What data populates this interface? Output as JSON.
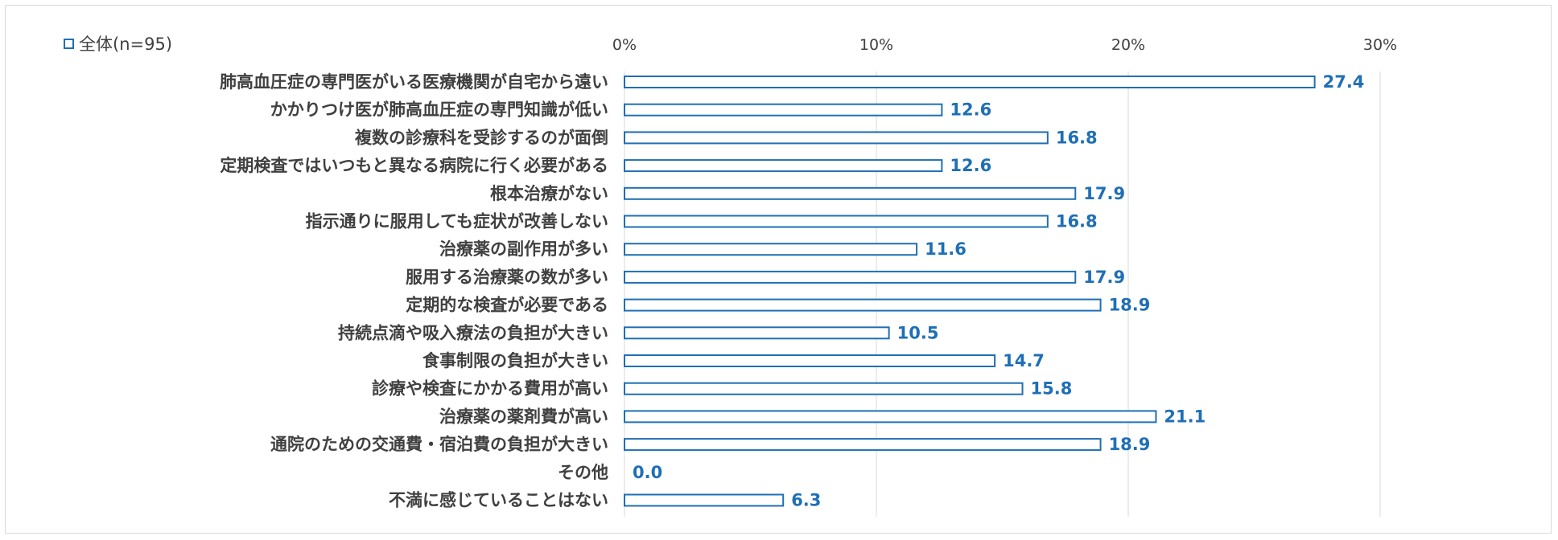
{
  "chart_data": {
    "type": "bar",
    "orientation": "horizontal",
    "legend": {
      "label": "全体(n=95)",
      "position": "top-left"
    },
    "categories": [
      "肺高血圧症の専門医がいる医療機関が自宅から遠い",
      "かかりつけ医が肺高血圧症の専門知識が低い",
      "複数の診療科を受診するのが面倒",
      "定期検査ではいつもと異なる病院に行く必要がある",
      "根本治療がない",
      "指示通りに服用しても症状が改善しない",
      "治療薬の副作用が多い",
      "服用する治療薬の数が多い",
      "定期的な検査が必要である",
      "持続点滴や吸入療法の負担が大きい",
      "食事制限の負担が大きい",
      "診療や検査にかかる費用が高い",
      "治療薬の薬剤費が高い",
      "通院のための交通費・宿泊費の負担が大きい",
      "その他",
      "不満に感じていることはない"
    ],
    "values": [
      27.4,
      12.6,
      16.8,
      12.6,
      17.9,
      16.8,
      11.6,
      17.9,
      18.9,
      10.5,
      14.7,
      15.8,
      21.1,
      18.9,
      0.0,
      6.3
    ],
    "value_labels": [
      "27.4",
      "12.6",
      "16.8",
      "12.6",
      "17.9",
      "16.8",
      "11.6",
      "17.9",
      "18.9",
      "10.5",
      "14.7",
      "15.8",
      "21.1",
      "18.9",
      "0.0",
      "6.3"
    ],
    "xticks": [
      0,
      10,
      20,
      30
    ],
    "xtick_labels": [
      "0%",
      "10%",
      "20%",
      "30%"
    ],
    "xlim": [
      0,
      30
    ],
    "grid": true,
    "colors": {
      "bar_border": "#1f6fb5",
      "bar_fill": "#ffffff",
      "value_text": "#1f6fb5",
      "grid": "#d9d9d9",
      "text": "#404040"
    }
  }
}
